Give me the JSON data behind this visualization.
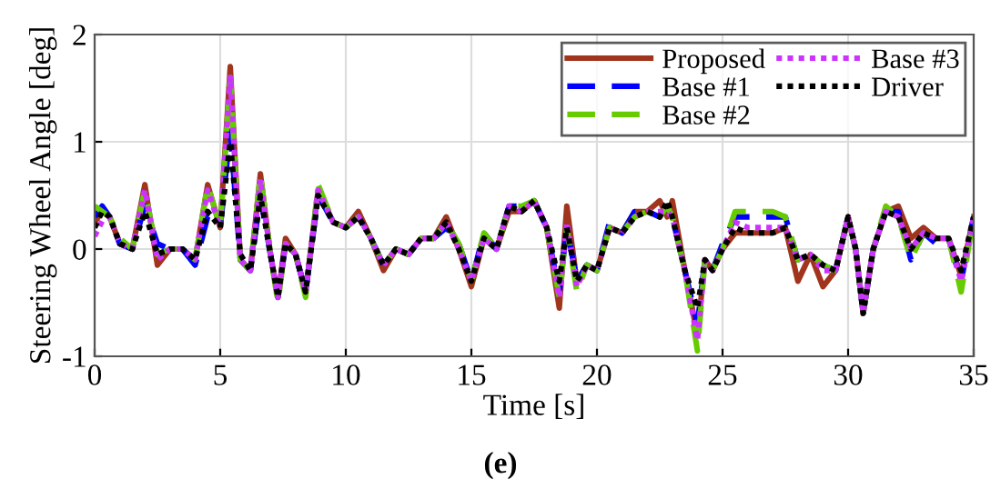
{
  "chart_data": {
    "type": "line",
    "xlabel": "Time [s]",
    "ylabel": "Steering Wheel Angle [deg]",
    "annotations": [
      "(e)"
    ],
    "xlim": [
      0,
      35
    ],
    "ylim": [
      -1,
      2
    ],
    "xticks": [
      0,
      5,
      10,
      15,
      20,
      25,
      30,
      35
    ],
    "yticks": [
      -1,
      0,
      1,
      2
    ],
    "grid": true,
    "legend": "top right",
    "marker": "none",
    "x": [
      0,
      0.3,
      0.6,
      1.0,
      1.5,
      2.0,
      2.5,
      3.0,
      3.5,
      4.0,
      4.5,
      5.0,
      5.4,
      5.8,
      6.2,
      6.6,
      7.0,
      7.3,
      7.6,
      8.0,
      8.4,
      8.9,
      9.5,
      10,
      10.5,
      11,
      11.5,
      12,
      12.5,
      13,
      13.5,
      14,
      14.5,
      15,
      15.5,
      16,
      16.5,
      17,
      17.5,
      18,
      18.5,
      18.8,
      19.2,
      19.6,
      20,
      20.5,
      21,
      21.5,
      22,
      22.5,
      22.8,
      23,
      23.5,
      24,
      24.3,
      24.6,
      25,
      25.5,
      26,
      27,
      27.5,
      28,
      28.5,
      29,
      29.5,
      30,
      30.3,
      30.6,
      31,
      31.5,
      32,
      32.5,
      33,
      33.5,
      34,
      34.5,
      35
    ],
    "series": [
      {
        "name": "Proposed",
        "color": "#a0341c",
        "line_style": "solid",
        "values": [
          0.25,
          0.35,
          0.3,
          0.05,
          0.0,
          0.6,
          -0.15,
          0.0,
          0.0,
          -0.1,
          0.6,
          0.2,
          1.7,
          -0.1,
          -0.2,
          0.7,
          -0.05,
          -0.45,
          0.1,
          -0.05,
          -0.4,
          0.55,
          0.25,
          0.2,
          0.35,
          0.1,
          -0.2,
          0.0,
          -0.05,
          0.1,
          0.1,
          0.3,
          0.0,
          -0.35,
          0.1,
          0.0,
          0.35,
          0.35,
          0.45,
          0.2,
          -0.55,
          0.4,
          -0.3,
          -0.15,
          -0.2,
          0.2,
          0.15,
          0.35,
          0.35,
          0.45,
          0.3,
          0.45,
          -0.2,
          -0.8,
          -0.1,
          -0.2,
          0.0,
          0.15,
          0.15,
          0.15,
          0.2,
          -0.3,
          -0.05,
          -0.35,
          -0.2,
          0.3,
          0.0,
          -0.6,
          0.0,
          0.35,
          0.4,
          0.1,
          0.2,
          0.1,
          0.1,
          -0.25,
          0.3
        ]
      },
      {
        "name": "Base #1",
        "color": "#0000ff",
        "line_style": "dashed",
        "values": [
          0.3,
          0.4,
          0.3,
          0.05,
          0.0,
          0.4,
          0.05,
          0.0,
          0.0,
          -0.15,
          0.3,
          0.2,
          1.1,
          -0.1,
          -0.2,
          0.5,
          -0.05,
          -0.45,
          0.05,
          -0.05,
          -0.4,
          0.5,
          0.25,
          0.2,
          0.3,
          0.1,
          -0.15,
          0.0,
          -0.05,
          0.1,
          0.1,
          0.2,
          0.05,
          -0.3,
          0.15,
          0.0,
          0.4,
          0.4,
          0.45,
          0.2,
          -0.4,
          0.2,
          -0.3,
          -0.15,
          -0.2,
          0.25,
          0.15,
          0.35,
          0.35,
          0.3,
          0.4,
          0.3,
          -0.2,
          -0.7,
          -0.1,
          -0.2,
          0.05,
          0.3,
          0.3,
          0.3,
          0.3,
          -0.1,
          -0.05,
          -0.15,
          -0.2,
          0.3,
          0.0,
          -0.6,
          0.0,
          0.35,
          0.35,
          -0.1,
          0.15,
          0.05,
          0.1,
          -0.3,
          0.3
        ]
      },
      {
        "name": "Base #2",
        "color": "#66cc00",
        "line_style": "dashed",
        "values": [
          0.4,
          0.35,
          0.3,
          0.1,
          0.0,
          0.55,
          -0.05,
          0.0,
          0.0,
          -0.1,
          0.6,
          0.2,
          1.6,
          -0.1,
          -0.2,
          0.7,
          -0.05,
          -0.5,
          0.05,
          -0.05,
          -0.45,
          0.6,
          0.25,
          0.2,
          0.3,
          0.1,
          -0.15,
          0.0,
          -0.05,
          0.1,
          0.1,
          0.25,
          0.05,
          -0.3,
          0.15,
          0.0,
          0.4,
          0.4,
          0.45,
          0.2,
          -0.45,
          0.2,
          -0.4,
          -0.15,
          -0.2,
          0.2,
          0.15,
          0.3,
          0.35,
          0.3,
          0.4,
          0.3,
          -0.2,
          -0.95,
          -0.1,
          -0.2,
          0.0,
          0.35,
          0.35,
          0.35,
          0.3,
          -0.1,
          -0.05,
          -0.15,
          -0.2,
          0.3,
          0.0,
          -0.6,
          0.0,
          0.4,
          0.3,
          -0.1,
          0.15,
          0.1,
          0.1,
          -0.4,
          0.3
        ]
      },
      {
        "name": "Base #3",
        "color": "#cc33ff",
        "line_style": "dotted",
        "values": [
          0.12,
          0.26,
          0.3,
          0.05,
          0.0,
          0.55,
          -0.1,
          0.0,
          0.0,
          -0.1,
          0.55,
          0.2,
          1.6,
          -0.1,
          -0.2,
          0.65,
          -0.05,
          -0.45,
          0.05,
          -0.05,
          -0.4,
          0.55,
          0.25,
          0.2,
          0.3,
          0.1,
          -0.15,
          0.0,
          -0.05,
          0.1,
          0.1,
          0.25,
          0.0,
          -0.3,
          0.1,
          0.0,
          0.4,
          0.35,
          0.45,
          0.2,
          -0.45,
          0.25,
          -0.35,
          -0.15,
          -0.2,
          0.2,
          0.15,
          0.3,
          0.35,
          0.35,
          0.35,
          0.3,
          -0.2,
          -0.85,
          -0.1,
          -0.2,
          0.0,
          0.25,
          0.2,
          0.2,
          0.2,
          -0.1,
          -0.05,
          -0.2,
          -0.2,
          0.3,
          0.0,
          -0.6,
          0.0,
          0.35,
          0.3,
          0.0,
          0.15,
          0.1,
          0.1,
          -0.3,
          0.3
        ]
      },
      {
        "name": "Driver",
        "color": "#000000",
        "line_style": "dotted",
        "values": [
          0.2,
          0.35,
          0.3,
          0.05,
          0.0,
          0.35,
          -0.05,
          0.0,
          0.0,
          -0.1,
          0.35,
          0.2,
          1.0,
          -0.05,
          -0.2,
          0.5,
          -0.05,
          -0.45,
          0.05,
          -0.05,
          -0.4,
          0.5,
          0.25,
          0.2,
          0.3,
          0.1,
          -0.15,
          0.0,
          -0.05,
          0.1,
          0.1,
          0.25,
          0.0,
          -0.3,
          0.1,
          0.0,
          0.4,
          0.35,
          0.45,
          0.2,
          -0.3,
          0.2,
          -0.3,
          -0.15,
          -0.2,
          0.2,
          0.15,
          0.3,
          0.35,
          0.3,
          0.45,
          0.3,
          -0.2,
          -0.55,
          -0.1,
          -0.2,
          0.0,
          0.2,
          0.15,
          0.15,
          0.2,
          -0.1,
          -0.05,
          -0.15,
          -0.2,
          0.3,
          0.0,
          -0.6,
          0.0,
          0.35,
          0.3,
          0.0,
          0.15,
          0.1,
          0.1,
          -0.2,
          0.3
        ]
      }
    ]
  }
}
